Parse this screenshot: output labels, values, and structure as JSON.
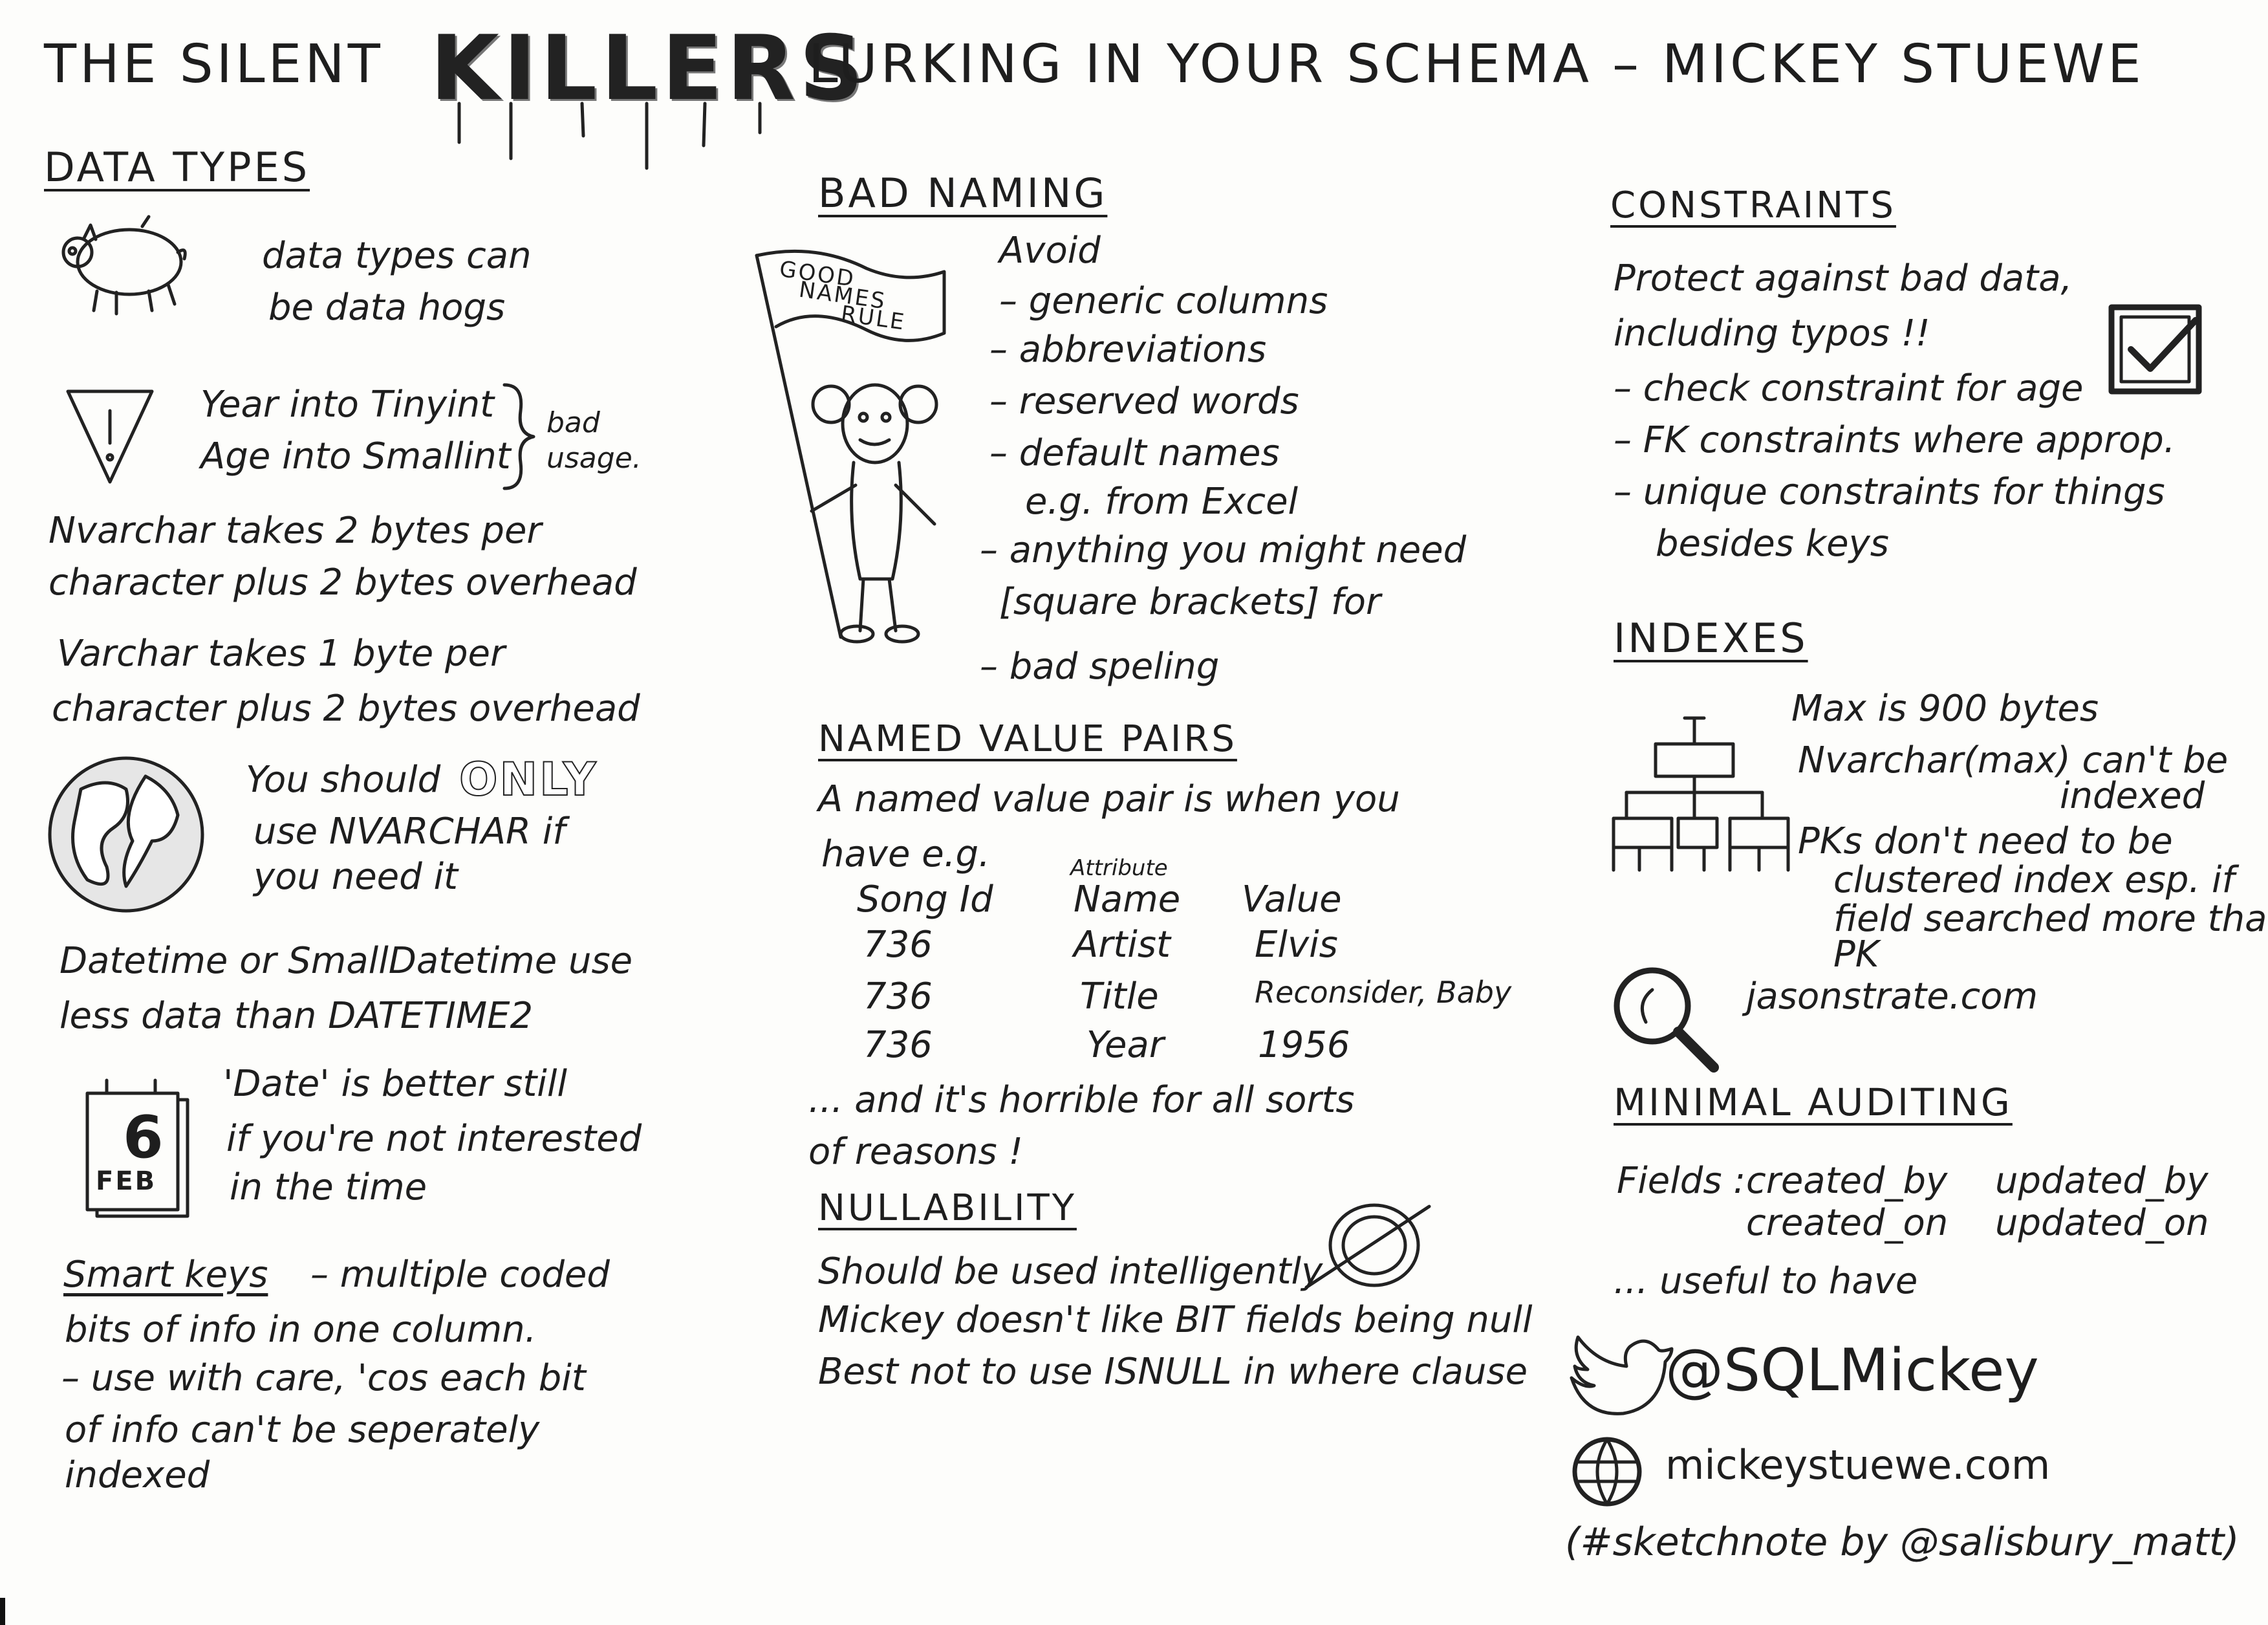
{
  "header": {
    "title_pre": "THE SILENT",
    "title_killers": "KILLERS",
    "title_post": "LURKING IN YOUR SCHEMA – MICKEY STUEWE"
  },
  "data_types": {
    "heading": "DATA TYPES",
    "hog_text": [
      "data types can",
      "be data hogs"
    ],
    "warning_lines": [
      "Year into Tinyint",
      "Age into Smallint"
    ],
    "bad_usage": [
      "bad",
      "usage."
    ],
    "nvarchar": [
      "Nvarchar takes 2 bytes per",
      "character plus 2 bytes overhead"
    ],
    "varchar": [
      "Varchar takes 1 byte per",
      "character plus 2 bytes overhead"
    ],
    "only_pre": "You should",
    "only_word": "ONLY",
    "only_rest": [
      "use NVARCHAR if",
      "you need it"
    ],
    "datetime": [
      "Datetime or SmallDatetime use",
      "less data than DATETIME2"
    ],
    "calendar_day": "6",
    "calendar_month": "FEB",
    "date_text": [
      "'Date' is better still",
      "if you're not interested",
      "in the time"
    ],
    "smart_keys_label": "Smart keys",
    "smart_keys_text": "– multiple coded",
    "smart_keys_more": [
      "bits of info in one column.",
      "– use with care, 'cos each bit",
      "of info can't be seperately",
      "indexed"
    ]
  },
  "bad_naming": {
    "heading": "BAD NAMING",
    "flag_text": [
      "GOOD",
      "NAMES",
      "RULE"
    ],
    "avoid": "Avoid",
    "items": [
      "– generic columns",
      "– abbreviations",
      "– reserved words",
      "– default names",
      "e.g. from Excel",
      "– anything you might need",
      "[square brackets] for",
      "– bad speling"
    ]
  },
  "named_value_pairs": {
    "heading": "NAMED VALUE PAIRS",
    "intro": [
      "A named value pair is when you",
      "have e.g."
    ],
    "attribute_note": "Attribute",
    "headers": [
      "Song Id",
      "Name",
      "Value"
    ],
    "rows": [
      [
        "736",
        "Artist",
        "Elvis"
      ],
      [
        "736",
        "Title",
        "Reconsider, Baby"
      ],
      [
        "736",
        "Year",
        "1956"
      ]
    ],
    "outro": [
      "... and it's horrible for all sorts",
      "of reasons !"
    ]
  },
  "nullability": {
    "heading": "NULLABILITY",
    "lines": [
      "Should be used intelligently",
      "Mickey doesn't like BIT fields being null",
      "Best not to use ISNULL in where clause"
    ]
  },
  "constraints": {
    "heading": "CONSTRAINTS",
    "lines": [
      "Protect against bad data,",
      "including typos !!",
      "– check constraint for age",
      "– FK constraints where approp.",
      "– unique constraints for things",
      "besides keys"
    ]
  },
  "indexes": {
    "heading": "INDEXES",
    "lines": [
      "Max is 900 bytes",
      "Nvarchar(max) can't be",
      "indexed",
      "PKs don't need to be",
      "clustered index esp. if",
      "field searched more than",
      "PK"
    ],
    "link": "jasonstrate.com"
  },
  "minimal_auditing": {
    "heading": "MINIMAL AUDITING",
    "fields_label": "Fields :",
    "fields": [
      "created_by",
      "created_on",
      "updated_by",
      "updated_on"
    ],
    "outro": "... useful to have"
  },
  "footer": {
    "twitter": "@SQLMickey",
    "website": "mickeystuewe.com",
    "credit": "(#sketchnote by @salisbury_matt)"
  },
  "icons": [
    "pig-icon",
    "warning-icon",
    "globe-icon",
    "calendar-icon",
    "flag-icon",
    "stick-figure-icon",
    "null-symbol-icon",
    "checkbox-icon",
    "tree-icon",
    "magnifier-icon",
    "twitter-bird-icon",
    "web-globe-icon"
  ]
}
